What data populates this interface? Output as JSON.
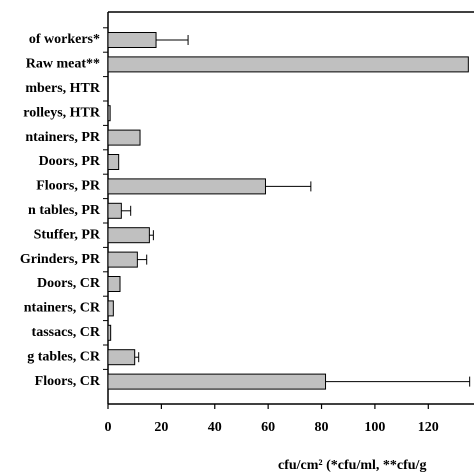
{
  "chart_data": {
    "type": "hbar",
    "categories": [
      "of workers*",
      "Raw meat**",
      "mbers, HTR",
      "rolleys, HTR",
      "ntainers, PR",
      "Doors, PR",
      "Floors, PR",
      "n tables, PR",
      "Stuffer, PR",
      "Grinders, PR",
      "Doors, CR",
      "ntainers, CR",
      "tassacs, CR",
      "g tables, CR",
      "Floors, CR"
    ],
    "values": [
      18,
      135,
      0,
      0.8,
      12,
      4,
      59,
      5,
      15.5,
      11,
      4.5,
      2,
      1,
      10,
      81.5
    ],
    "errors": [
      12,
      null,
      null,
      null,
      null,
      null,
      17,
      3.5,
      1.5,
      3.5,
      null,
      null,
      null,
      1.5,
      54
    ],
    "color": "#c0c0c0",
    "xlim": [
      0,
      136
    ],
    "xticks": [
      0,
      20,
      40,
      60,
      80,
      100,
      120
    ],
    "x_label": "cfu/cm² (*cfu/ml, **cfu/g"
  }
}
